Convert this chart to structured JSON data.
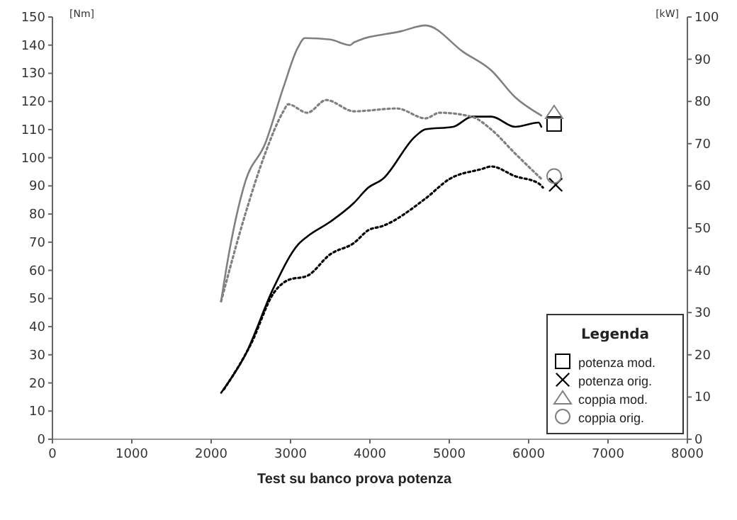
{
  "chart_data": {
    "type": "line",
    "title": "Test su banco prova potenza",
    "ylabel": "[Nm]",
    "y2label": "[kW]",
    "legend_title": "Legenda",
    "legend": "bottom right",
    "grid": false,
    "xlim": [
      0,
      8000
    ],
    "xticks": [
      0,
      1000,
      2000,
      3000,
      4000,
      5000,
      6000,
      7000,
      8000
    ],
    "ylim": [
      0,
      150
    ],
    "yticks": [
      0,
      10,
      20,
      30,
      40,
      50,
      60,
      70,
      80,
      90,
      100,
      110,
      120,
      130,
      140,
      150
    ],
    "y2lim": [
      0,
      100
    ],
    "y2ticks": [
      0,
      10,
      20,
      30,
      40,
      50,
      60,
      70,
      80,
      90,
      100
    ],
    "series": [
      {
        "name": "potenza mod.",
        "color": "#000000",
        "axis": "y2",
        "line_style": "solid",
        "x": [
          2125,
          2430,
          2790,
          3090,
          3210,
          3500,
          3800,
          3980,
          4160,
          4570,
          4700,
          5050,
          5290,
          5530,
          5830,
          6125,
          6160
        ],
        "values": [
          11,
          20,
          36,
          46,
          48,
          51.5,
          56,
          59.6,
          61.6,
          71.7,
          73.4,
          74,
          76.4,
          76.4,
          74,
          75,
          74
        ]
      },
      {
        "name": "potenza orig.",
        "color": "#000000",
        "axis": "y2",
        "line_style": "dotted",
        "x": [
          2160,
          2500,
          2790,
          2970,
          3210,
          3500,
          3800,
          3980,
          4160,
          4700,
          5000,
          5410,
          5530,
          5830,
          6125,
          6180
        ],
        "values": [
          11.8,
          22.5,
          34.7,
          37.7,
          38.7,
          43.8,
          46.5,
          49.5,
          50.5,
          57,
          61.6,
          64,
          64.6,
          62.3,
          60.6,
          59.6
        ]
      },
      {
        "name": "coppia mod.",
        "color": "#808080",
        "line_style": "solid",
        "x": [
          2125,
          2196,
          2430,
          2680,
          2910,
          3090,
          3180,
          3500,
          3750,
          3800,
          4400,
          4700,
          5180,
          5530,
          5830,
          6160
        ],
        "values": [
          49,
          61.5,
          91.5,
          105,
          125,
          139,
          142.5,
          142,
          140,
          141,
          145,
          147,
          137.5,
          131,
          121.5,
          115
        ]
      },
      {
        "name": "coppia orig.",
        "color": "#808080",
        "line_style": "dotted",
        "x": [
          2125,
          2430,
          2680,
          2910,
          2970,
          3210,
          3450,
          3800,
          4340,
          4700,
          4880,
          5290,
          5530,
          5830,
          6160
        ],
        "values": [
          49,
          80,
          101.5,
          116.5,
          119,
          116,
          120.5,
          116.5,
          117.5,
          114,
          116,
          114.5,
          110,
          101.5,
          92.5
        ]
      }
    ]
  }
}
